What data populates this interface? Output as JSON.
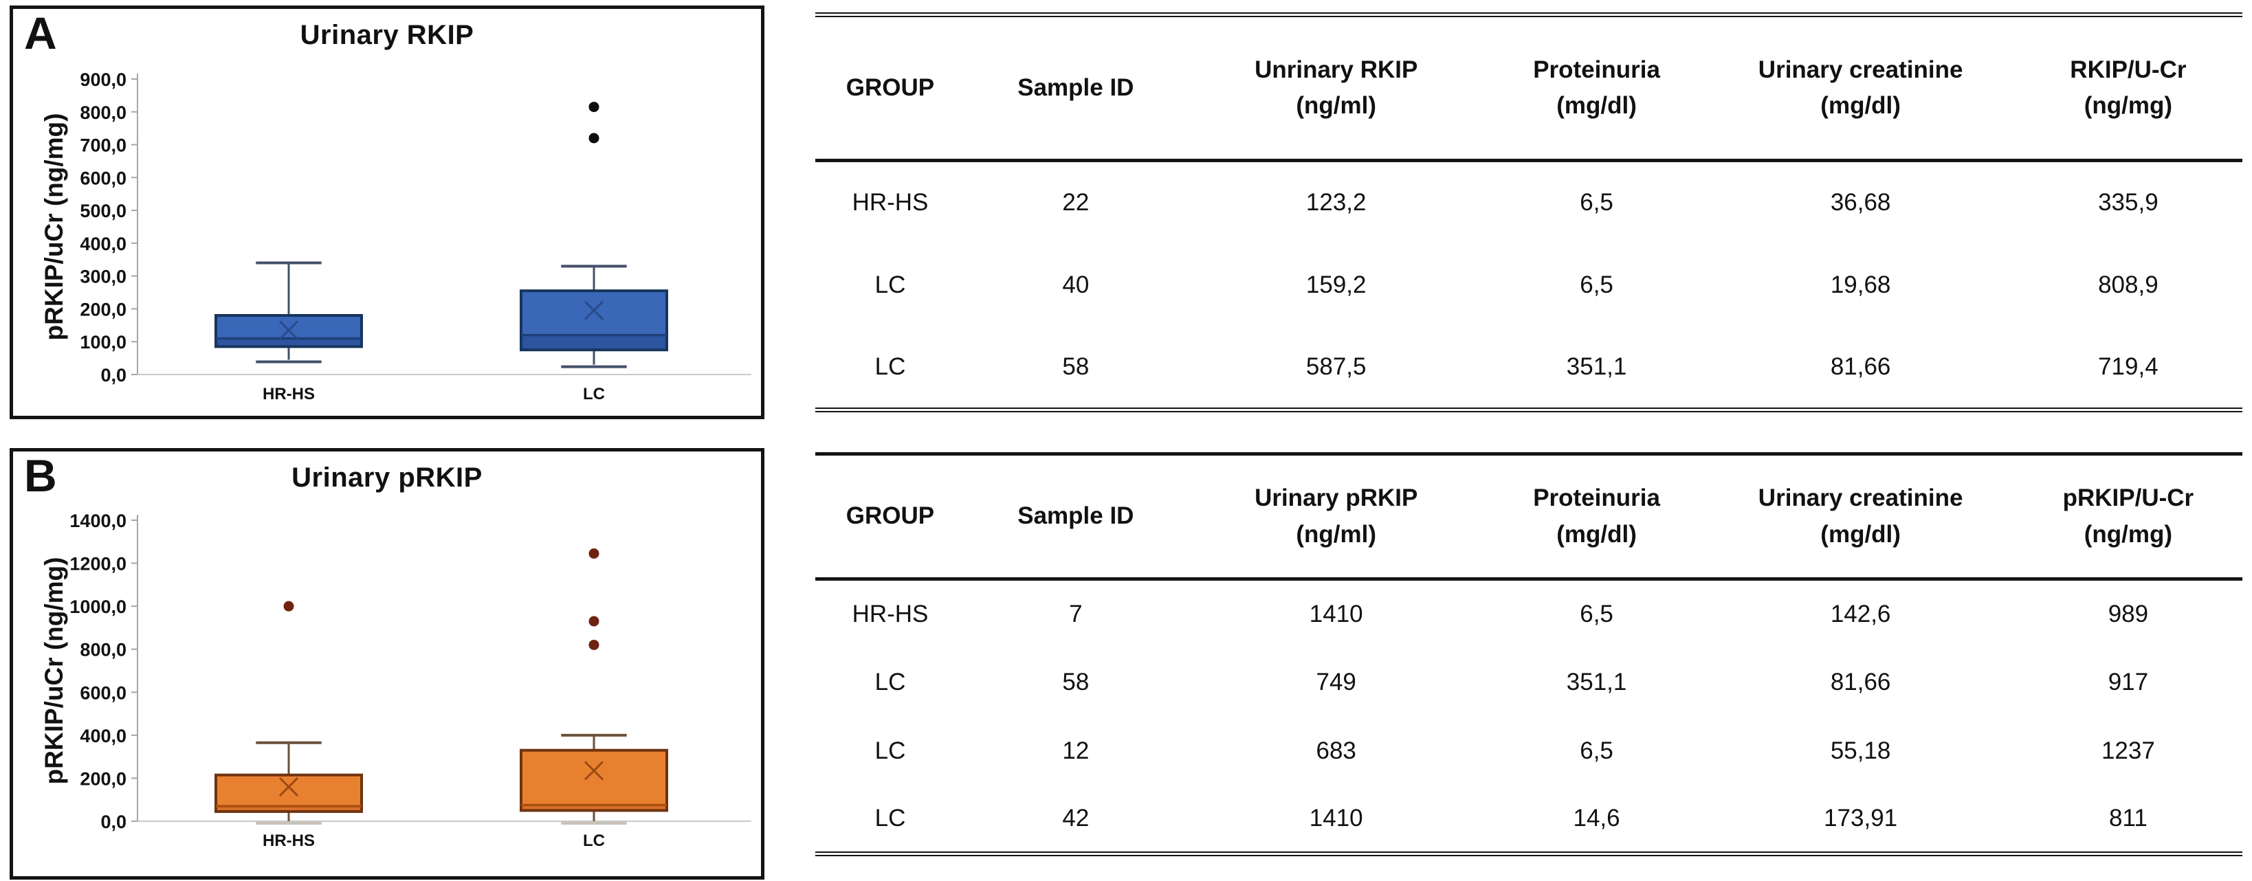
{
  "figure": {
    "background": "#ffffff"
  },
  "chart_data": [
    {
      "type": "box",
      "panel_label": "A",
      "title": "Urinary RKIP",
      "ylabel": "pRKIP/uCr (ng/mg)",
      "categories": [
        "HR-HS",
        "LC"
      ],
      "ylim": [
        0,
        900
      ],
      "ytick_step": 100,
      "ytick_labels": [
        "0,0",
        "100,0",
        "200,0",
        "300,0",
        "400,0",
        "500,0",
        "600,0",
        "700,0",
        "800,0",
        "900,0"
      ],
      "grid": "baseline-only",
      "legend": "none",
      "series": [
        {
          "name": "HR-HS",
          "whisker_low": 45,
          "q1": 85,
          "median": 110,
          "q3": 180,
          "whisker_high": 340,
          "mean": 135,
          "outliers": []
        },
        {
          "name": "LC",
          "whisker_low": 30,
          "q1": 75,
          "median": 120,
          "q3": 255,
          "whisker_high": 330,
          "mean": 195,
          "outliers": [
            720,
            815
          ]
        }
      ],
      "colors": {
        "box_fill": "#3a67b8",
        "box_fill_lower": "#2d549f",
        "box_stroke": "#16365c",
        "median": "#1f3f7a",
        "whisker": "#44506a",
        "mean_marker": "#2a4a8a",
        "outlier": "#0d0d12",
        "axis": "#a6a6a6"
      }
    },
    {
      "type": "box",
      "panel_label": "B",
      "title": "Urinary pRKIP",
      "ylabel": "pRKIP/uCr (ng/mg)",
      "categories": [
        "HR-HS",
        "LC"
      ],
      "ylim": [
        0,
        1400
      ],
      "ytick_step": 200,
      "ytick_labels": [
        "0,0",
        "200,0",
        "400,0",
        "600,0",
        "800,0",
        "1000,0",
        "1200,0",
        "1400,0"
      ],
      "grid": "baseline-only",
      "legend": "none",
      "series": [
        {
          "name": "HR-HS",
          "whisker_low": 0,
          "q1": 45,
          "median": 70,
          "q3": 215,
          "whisker_high": 365,
          "mean": 160,
          "outliers": [
            1000
          ]
        },
        {
          "name": "LC",
          "whisker_low": 0,
          "q1": 50,
          "median": 75,
          "q3": 330,
          "whisker_high": 400,
          "mean": 235,
          "outliers": [
            820,
            930,
            1245
          ]
        }
      ],
      "colors": {
        "box_fill": "#e8812f",
        "box_fill_lower": "#d9702a",
        "box_stroke": "#6f3410",
        "median": "#a8500f",
        "whisker": "#6b523a",
        "mean_marker": "#9c4a12",
        "outlier": "#6e2310",
        "axis": "#a6a6a6"
      }
    },
    {
      "type": "table",
      "columns": [
        {
          "label": "GROUP",
          "unit": ""
        },
        {
          "label": "Sample ID",
          "unit": ""
        },
        {
          "label": "Unrinary RKIP",
          "unit": "(ng/ml)"
        },
        {
          "label": "Proteinuria",
          "unit": "(mg/dl)"
        },
        {
          "label": "Urinary creatinine",
          "unit": "(mg/dl)"
        },
        {
          "label": "RKIP/U-Cr",
          "unit": "(ng/mg)"
        }
      ],
      "rows": [
        [
          {
            "t": "HR-HS"
          },
          {
            "t": "22"
          },
          {
            "t": "123,2"
          },
          {
            "t": "6,5"
          },
          {
            "t": "36,68",
            "b": true
          },
          {
            "t": "335,9",
            "b": true
          }
        ],
        [
          {
            "t": "LC"
          },
          {
            "t": "40"
          },
          {
            "t": "159,2"
          },
          {
            "t": "6,5"
          },
          {
            "t": "19,68",
            "b": true
          },
          {
            "t": "808,9",
            "b": true
          }
        ],
        [
          {
            "t": "LC"
          },
          {
            "t": "58"
          },
          {
            "t": "587,5"
          },
          {
            "t": "351,1",
            "b": true
          },
          {
            "t": "81,66"
          },
          {
            "t": "719,4",
            "b": true
          }
        ]
      ]
    },
    {
      "type": "table",
      "columns": [
        {
          "label": "GROUP",
          "unit": ""
        },
        {
          "label": "Sample ID",
          "unit": ""
        },
        {
          "label": "Urinary pRKIP",
          "unit": "(ng/ml)"
        },
        {
          "label": "Proteinuria",
          "unit": "(mg/dl)"
        },
        {
          "label": "Urinary creatinine",
          "unit": "(mg/dl)"
        },
        {
          "label": "pRKIP/U-Cr",
          "unit": "(ng/mg)"
        }
      ],
      "rows": [
        [
          {
            "t": "HR-HS"
          },
          {
            "t": "7"
          },
          {
            "t": "1410"
          },
          {
            "t": "6,5"
          },
          {
            "t": "142,6"
          },
          {
            "t": "989",
            "b": true
          }
        ],
        [
          {
            "t": "LC"
          },
          {
            "t": "58"
          },
          {
            "t": "749"
          },
          {
            "t": "351,1",
            "b": true
          },
          {
            "t": "81,66"
          },
          {
            "t": "917",
            "b": true
          }
        ],
        [
          {
            "t": "LC"
          },
          {
            "t": "12"
          },
          {
            "t": "683"
          },
          {
            "t": "6,5"
          },
          {
            "t": "55,18",
            "b": true
          },
          {
            "t": "1237",
            "b": true
          }
        ],
        [
          {
            "t": "LC"
          },
          {
            "t": "42"
          },
          {
            "t": "1410"
          },
          {
            "t": "14,6"
          },
          {
            "t": "173,91"
          },
          {
            "t": "811",
            "b": true
          }
        ]
      ]
    }
  ]
}
